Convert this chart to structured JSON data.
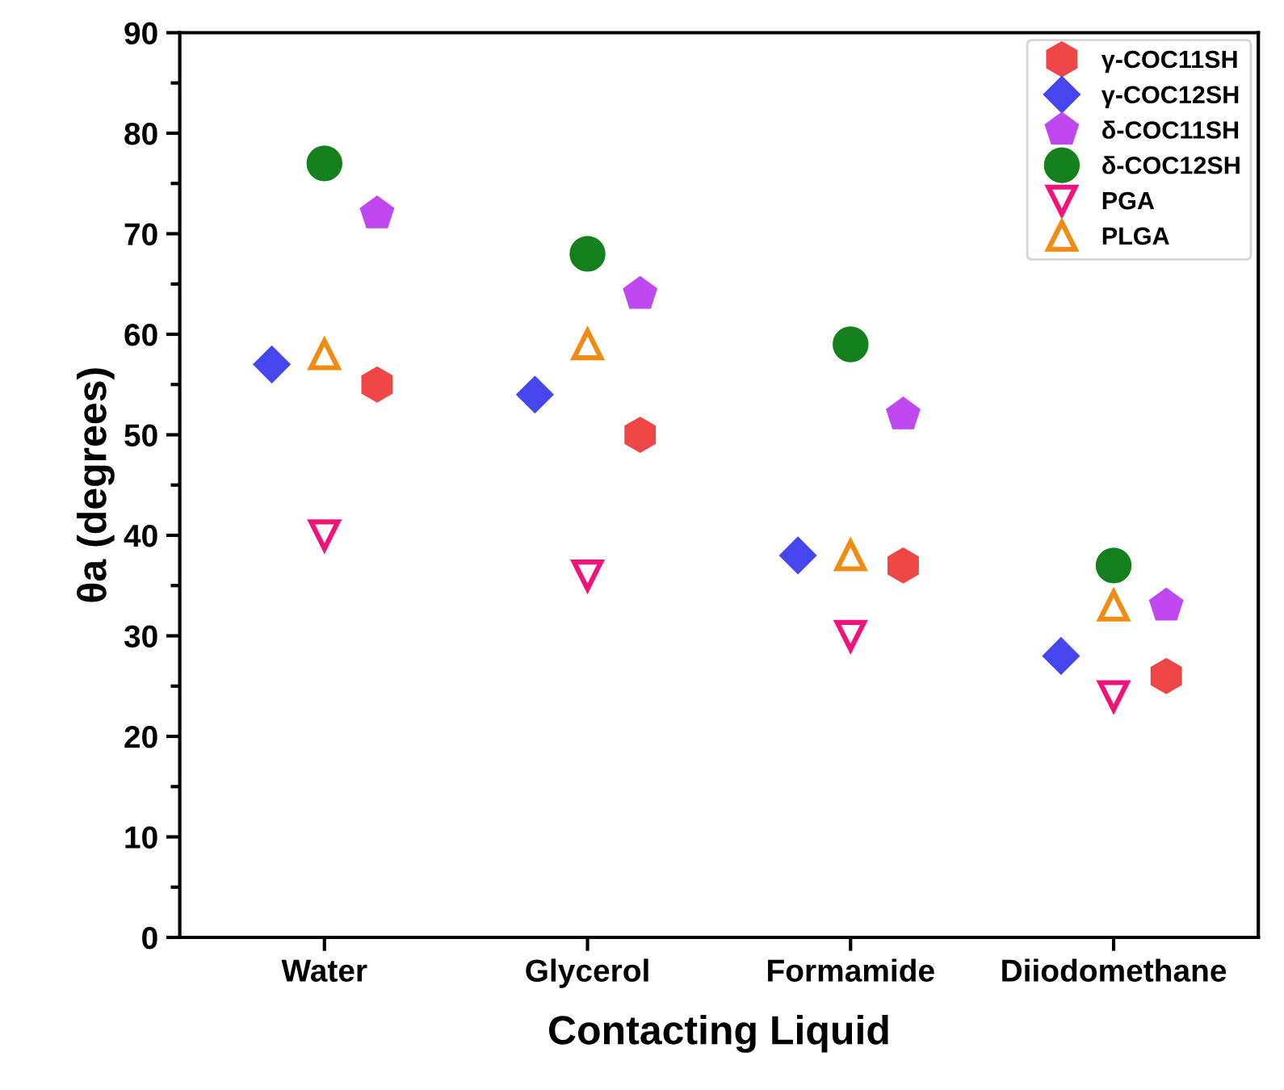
{
  "chart_data": {
    "type": "scatter",
    "xlabel": "Contacting Liquid",
    "ylabel": "θa (degrees)",
    "categories": [
      "Water",
      "Glycerol",
      "Formamide",
      "Diiodomethane"
    ],
    "ylim": [
      0,
      90
    ],
    "yticks": [
      0,
      10,
      20,
      30,
      40,
      50,
      60,
      70,
      80,
      90
    ],
    "grid": false,
    "legend": "top right",
    "series": [
      {
        "name": "γ-COC11SH",
        "color": "#f04646",
        "values": [
          55,
          50,
          37,
          26
        ]
      },
      {
        "name": "γ-COC12SH",
        "color": "#4646f0",
        "marker": "diamond",
        "values": [
          57,
          54,
          38,
          28
        ]
      },
      {
        "name": "δ-COC11SH",
        "color": "#c048f0",
        "values": [
          72,
          64,
          52,
          33
        ]
      },
      {
        "name": "δ-COC12SH",
        "color": "#14801e",
        "marker": "circle",
        "values": [
          77,
          68,
          59,
          37
        ]
      },
      {
        "name": "PGA",
        "color": "#f0147a",
        "marker": "triangle-down-open",
        "values": [
          40,
          36,
          30,
          24
        ]
      },
      {
        "name": "PLGA",
        "color": "#f08c14",
        "marker": "triangle-open",
        "values": [
          58,
          59,
          38,
          33
        ]
      }
    ]
  }
}
